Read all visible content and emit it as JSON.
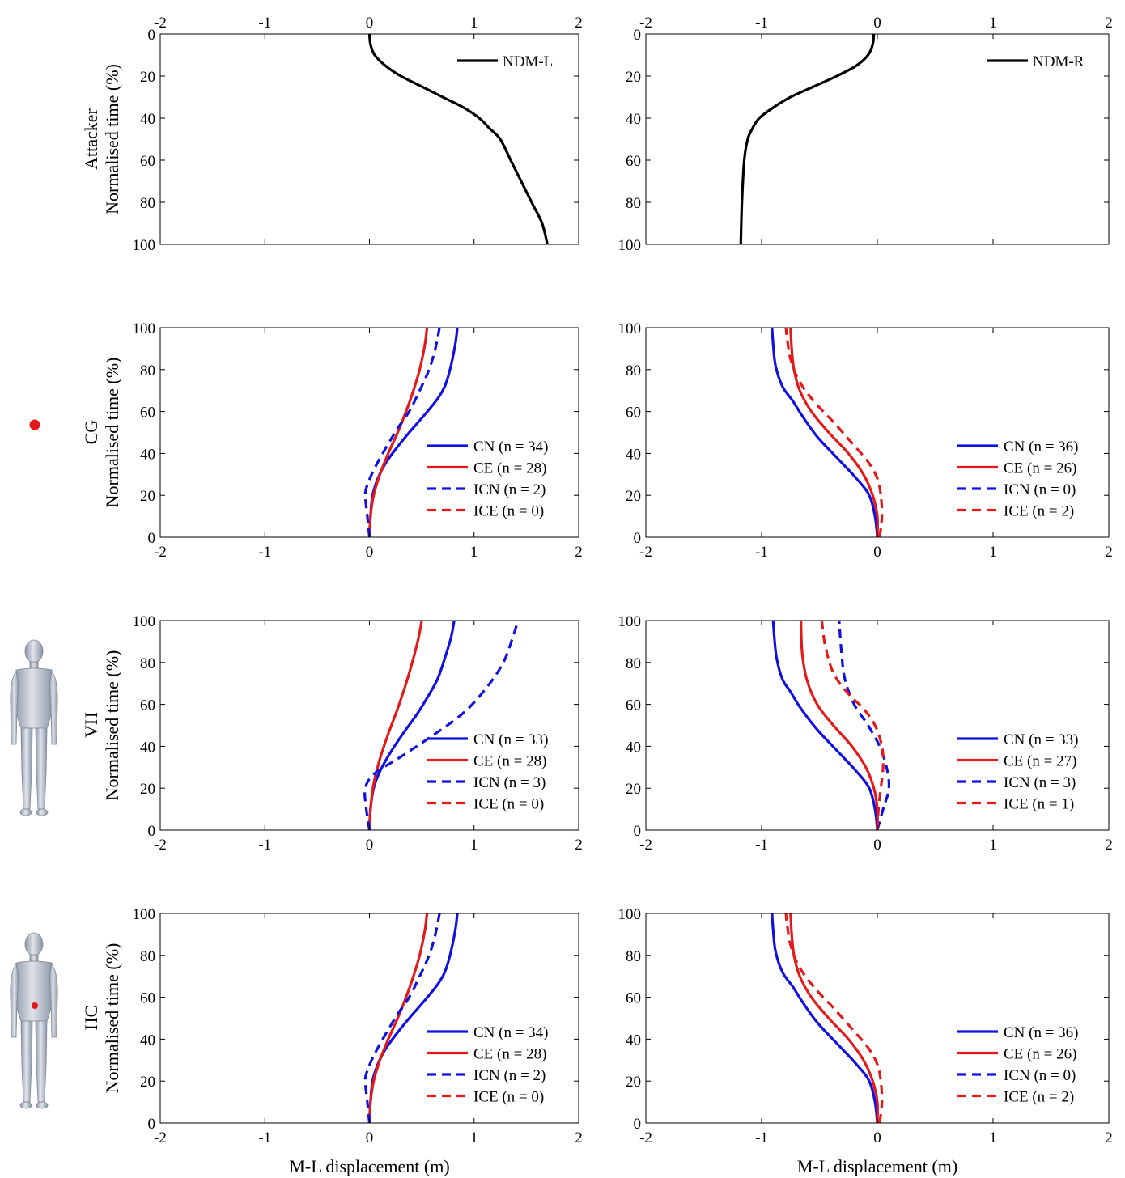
{
  "figure": {
    "row_labels": [
      "Attacker",
      "CG",
      "VH",
      "HC"
    ],
    "ylabel": "Normalised time (%)",
    "xlabel": "M-L displacement (m)"
  },
  "colors": {
    "CN": "#1010e0",
    "CE": "#e41a1a",
    "ICN": "#1010e0",
    "ICE": "#e41a1a",
    "NDM": "#000000",
    "marker": "#e41a1a"
  },
  "icons": [
    "red-dot-marker-icon",
    "human-figure-icon",
    "human-figure-with-marker-icon"
  ],
  "chart_data": [
    {
      "id": "attacker-left",
      "type": "line",
      "row_label": "Attacker",
      "xlim": [
        -2,
        2
      ],
      "ylim": [
        0,
        100
      ],
      "y_reversed": true,
      "x_axis_position": "top",
      "xticks": [
        -2,
        -1,
        0,
        1,
        2
      ],
      "yticks": [
        0,
        20,
        40,
        60,
        80,
        100
      ],
      "ylabel": "Normalised time (%)",
      "xlabel": "",
      "legend": "top-right",
      "grid": false,
      "series": [
        {
          "name": "NDM-L",
          "key": "NDM",
          "style": "solid",
          "x": [
            0,
            0.01,
            0.05,
            0.15,
            0.3,
            0.5,
            0.7,
            0.9,
            1.05,
            1.15,
            1.25,
            1.35,
            1.45,
            1.55,
            1.65,
            1.7
          ],
          "y": [
            0,
            5,
            10,
            15,
            20,
            25,
            30,
            35,
            40,
            45,
            50,
            60,
            70,
            80,
            90,
            100
          ]
        }
      ]
    },
    {
      "id": "attacker-right",
      "type": "line",
      "row_label": "",
      "xlim": [
        -2,
        2
      ],
      "ylim": [
        0,
        100
      ],
      "y_reversed": true,
      "x_axis_position": "top",
      "xticks": [
        -2,
        -1,
        0,
        1,
        2
      ],
      "yticks": [
        0,
        20,
        40,
        60,
        80,
        100
      ],
      "ylabel": "",
      "xlabel": "",
      "legend": "top-right",
      "grid": false,
      "series": [
        {
          "name": "NDM-R",
          "key": "NDM",
          "style": "solid",
          "x": [
            -0.03,
            -0.04,
            -0.08,
            -0.18,
            -0.35,
            -0.55,
            -0.75,
            -0.9,
            -1.02,
            -1.08,
            -1.12,
            -1.15,
            -1.17,
            -1.18
          ],
          "y": [
            0,
            5,
            10,
            15,
            20,
            25,
            30,
            35,
            40,
            45,
            50,
            60,
            80,
            100
          ]
        }
      ]
    },
    {
      "id": "cg-left",
      "type": "line",
      "row_label": "CG",
      "xlim": [
        -2,
        2
      ],
      "ylim": [
        0,
        100
      ],
      "y_reversed": false,
      "x_axis_position": "bottom",
      "xticks": [
        -2,
        -1,
        0,
        1,
        2
      ],
      "yticks": [
        0,
        20,
        40,
        60,
        80,
        100
      ],
      "ylabel": "Normalised time (%)",
      "xlabel": "",
      "legend": "lower-right",
      "grid": false,
      "series": [
        {
          "name": "CN (n = 34)",
          "key": "CN",
          "style": "solid",
          "x": [
            0,
            0.01,
            0.03,
            0.08,
            0.15,
            0.25,
            0.38,
            0.52,
            0.65,
            0.72,
            0.77,
            0.82,
            0.84
          ],
          "y": [
            0,
            10,
            20,
            28,
            35,
            42,
            50,
            58,
            66,
            72,
            80,
            92,
            100
          ]
        },
        {
          "name": "CE (n = 28)",
          "key": "CE",
          "style": "solid",
          "x": [
            0,
            0.01,
            0.04,
            0.1,
            0.18,
            0.27,
            0.35,
            0.42,
            0.48,
            0.53,
            0.55
          ],
          "y": [
            0,
            10,
            20,
            30,
            40,
            50,
            60,
            70,
            80,
            92,
            100
          ]
        },
        {
          "name": "ICN (n = 2)",
          "key": "ICN",
          "style": "dashed",
          "x": [
            0,
            -0.02,
            -0.04,
            -0.02,
            0.05,
            0.15,
            0.27,
            0.38,
            0.48,
            0.57,
            0.63,
            0.67
          ],
          "y": [
            0,
            10,
            20,
            25,
            33,
            42,
            52,
            60,
            70,
            80,
            90,
            100
          ]
        },
        {
          "name": "ICE (n = 0)",
          "key": "ICE",
          "style": "dashed",
          "x": [],
          "y": []
        }
      ]
    },
    {
      "id": "cg-right",
      "type": "line",
      "row_label": "",
      "xlim": [
        -2,
        2
      ],
      "ylim": [
        0,
        100
      ],
      "y_reversed": false,
      "x_axis_position": "bottom",
      "xticks": [
        -2,
        -1,
        0,
        1,
        2
      ],
      "yticks": [
        0,
        20,
        40,
        60,
        80,
        100
      ],
      "ylabel": "",
      "xlabel": "",
      "legend": "lower-right",
      "grid": false,
      "series": [
        {
          "name": "CN (n = 36)",
          "key": "CN",
          "style": "solid",
          "x": [
            0,
            -0.02,
            -0.07,
            -0.18,
            -0.35,
            -0.52,
            -0.65,
            -0.73,
            -0.82,
            -0.88,
            -0.9,
            -0.91
          ],
          "y": [
            0,
            10,
            20,
            28,
            38,
            48,
            58,
            65,
            72,
            82,
            92,
            100
          ]
        },
        {
          "name": "CE (n = 26)",
          "key": "CE",
          "style": "solid",
          "x": [
            0,
            0,
            -0.04,
            -0.12,
            -0.25,
            -0.42,
            -0.57,
            -0.67,
            -0.72,
            -0.74,
            -0.75
          ],
          "y": [
            0,
            10,
            20,
            30,
            40,
            50,
            60,
            70,
            80,
            90,
            100
          ]
        },
        {
          "name": "ICN (n = 0)",
          "key": "ICN",
          "style": "dashed",
          "x": [],
          "y": []
        },
        {
          "name": "ICE (n = 2)",
          "key": "ICE",
          "style": "dashed",
          "x": [
            0.02,
            0.04,
            0.03,
            0.0,
            -0.08,
            -0.22,
            -0.38,
            -0.55,
            -0.68,
            -0.75,
            -0.78,
            -0.79
          ],
          "y": [
            0,
            10,
            20,
            28,
            36,
            45,
            55,
            65,
            75,
            85,
            95,
            100
          ]
        }
      ]
    },
    {
      "id": "vh-left",
      "type": "line",
      "row_label": "VH",
      "xlim": [
        -2,
        2
      ],
      "ylim": [
        0,
        100
      ],
      "y_reversed": false,
      "x_axis_position": "bottom",
      "xticks": [
        -2,
        -1,
        0,
        1,
        2
      ],
      "yticks": [
        0,
        20,
        40,
        60,
        80,
        100
      ],
      "ylabel": "Normalised time (%)",
      "xlabel": "",
      "legend": "lower-right",
      "grid": false,
      "series": [
        {
          "name": "CN (n = 33)",
          "key": "CN",
          "style": "solid",
          "x": [
            0,
            0.01,
            0.04,
            0.1,
            0.2,
            0.32,
            0.45,
            0.55,
            0.65,
            0.72,
            0.78,
            0.81
          ],
          "y": [
            0,
            10,
            20,
            28,
            37,
            46,
            55,
            63,
            72,
            82,
            92,
            100
          ]
        },
        {
          "name": "CE (n = 28)",
          "key": "CE",
          "style": "solid",
          "x": [
            0,
            0.01,
            0.04,
            0.1,
            0.18,
            0.27,
            0.35,
            0.42,
            0.47,
            0.5
          ],
          "y": [
            0,
            10,
            22,
            34,
            46,
            58,
            70,
            82,
            92,
            100
          ]
        },
        {
          "name": "ICN (n = 3)",
          "key": "ICN",
          "style": "dashed",
          "x": [
            0,
            -0.03,
            -0.04,
            0.05,
            0.3,
            0.6,
            0.9,
            1.12,
            1.28,
            1.37,
            1.42
          ],
          "y": [
            0,
            10,
            20,
            27,
            35,
            45,
            56,
            68,
            80,
            92,
            100
          ]
        },
        {
          "name": "ICE (n = 0)",
          "key": "ICE",
          "style": "dashed",
          "x": [],
          "y": []
        }
      ]
    },
    {
      "id": "vh-right",
      "type": "line",
      "row_label": "",
      "xlim": [
        -2,
        2
      ],
      "ylim": [
        0,
        100
      ],
      "y_reversed": false,
      "x_axis_position": "bottom",
      "xticks": [
        -2,
        -1,
        0,
        1,
        2
      ],
      "yticks": [
        0,
        20,
        40,
        60,
        80,
        100
      ],
      "ylabel": "",
      "xlabel": "",
      "legend": "lower-right",
      "grid": false,
      "series": [
        {
          "name": "CN (n = 33)",
          "key": "CN",
          "style": "solid",
          "x": [
            0,
            -0.02,
            -0.07,
            -0.18,
            -0.35,
            -0.52,
            -0.66,
            -0.75,
            -0.82,
            -0.87,
            -0.89,
            -0.9
          ],
          "y": [
            0,
            10,
            20,
            28,
            38,
            48,
            58,
            66,
            72,
            82,
            92,
            100
          ]
        },
        {
          "name": "CE (n = 27)",
          "key": "CE",
          "style": "solid",
          "x": [
            0,
            0,
            -0.03,
            -0.1,
            -0.22,
            -0.38,
            -0.52,
            -0.61,
            -0.65,
            -0.66
          ],
          "y": [
            0,
            10,
            20,
            30,
            40,
            50,
            60,
            72,
            85,
            100
          ]
        },
        {
          "name": "ICN (n = 3)",
          "key": "ICN",
          "style": "dashed",
          "x": [
            0,
            0.05,
            0.1,
            0.08,
            0.02,
            -0.08,
            -0.2,
            -0.28,
            -0.31,
            -0.33
          ],
          "y": [
            0,
            10,
            20,
            30,
            40,
            50,
            60,
            72,
            85,
            100
          ]
        },
        {
          "name": "ICE (n = 1)",
          "key": "ICE",
          "style": "dashed",
          "x": [
            0,
            0.01,
            0.03,
            0.05,
            0.04,
            -0.02,
            -0.12,
            -0.25,
            -0.38,
            -0.45,
            -0.48
          ],
          "y": [
            0,
            10,
            20,
            30,
            40,
            50,
            58,
            65,
            75,
            88,
            100
          ]
        }
      ]
    },
    {
      "id": "hc-left",
      "type": "line",
      "row_label": "HC",
      "xlim": [
        -2,
        2
      ],
      "ylim": [
        0,
        100
      ],
      "y_reversed": false,
      "x_axis_position": "bottom",
      "xticks": [
        -2,
        -1,
        0,
        1,
        2
      ],
      "yticks": [
        0,
        20,
        40,
        60,
        80,
        100
      ],
      "ylabel": "Normalised time (%)",
      "xlabel": "M-L displacement (m)",
      "legend": "lower-right",
      "grid": false,
      "series": [
        {
          "name": "CN (n = 34)",
          "key": "CN",
          "style": "solid",
          "x": [
            0,
            0.01,
            0.03,
            0.08,
            0.15,
            0.25,
            0.38,
            0.52,
            0.65,
            0.72,
            0.77,
            0.82,
            0.84
          ],
          "y": [
            0,
            10,
            20,
            28,
            35,
            42,
            50,
            58,
            66,
            72,
            80,
            92,
            100
          ]
        },
        {
          "name": "CE (n = 28)",
          "key": "CE",
          "style": "solid",
          "x": [
            0,
            0.01,
            0.04,
            0.1,
            0.18,
            0.27,
            0.35,
            0.42,
            0.48,
            0.53,
            0.55
          ],
          "y": [
            0,
            10,
            20,
            30,
            40,
            50,
            60,
            70,
            80,
            92,
            100
          ]
        },
        {
          "name": "ICN (n = 2)",
          "key": "ICN",
          "style": "dashed",
          "x": [
            0,
            -0.02,
            -0.04,
            -0.02,
            0.05,
            0.15,
            0.27,
            0.38,
            0.48,
            0.57,
            0.63,
            0.67
          ],
          "y": [
            0,
            10,
            20,
            25,
            33,
            42,
            52,
            60,
            70,
            80,
            90,
            100
          ]
        },
        {
          "name": "ICE (n = 0)",
          "key": "ICE",
          "style": "dashed",
          "x": [],
          "y": []
        }
      ]
    },
    {
      "id": "hc-right",
      "type": "line",
      "row_label": "",
      "xlim": [
        -2,
        2
      ],
      "ylim": [
        0,
        100
      ],
      "y_reversed": false,
      "x_axis_position": "bottom",
      "xticks": [
        -2,
        -1,
        0,
        1,
        2
      ],
      "yticks": [
        0,
        20,
        40,
        60,
        80,
        100
      ],
      "ylabel": "",
      "xlabel": "M-L displacement (m)",
      "legend": "lower-right",
      "grid": false,
      "series": [
        {
          "name": "CN (n = 36)",
          "key": "CN",
          "style": "solid",
          "x": [
            0,
            -0.02,
            -0.07,
            -0.18,
            -0.35,
            -0.52,
            -0.65,
            -0.73,
            -0.82,
            -0.88,
            -0.9,
            -0.91
          ],
          "y": [
            0,
            10,
            20,
            28,
            38,
            48,
            58,
            65,
            72,
            82,
            92,
            100
          ]
        },
        {
          "name": "CE (n = 26)",
          "key": "CE",
          "style": "solid",
          "x": [
            0,
            0,
            -0.04,
            -0.12,
            -0.25,
            -0.42,
            -0.57,
            -0.67,
            -0.72,
            -0.74,
            -0.75
          ],
          "y": [
            0,
            10,
            20,
            30,
            40,
            50,
            60,
            70,
            80,
            90,
            100
          ]
        },
        {
          "name": "ICN (n = 0)",
          "key": "ICN",
          "style": "dashed",
          "x": [],
          "y": []
        },
        {
          "name": "ICE (n = 2)",
          "key": "ICE",
          "style": "dashed",
          "x": [
            0.02,
            0.04,
            0.03,
            0.0,
            -0.08,
            -0.22,
            -0.38,
            -0.55,
            -0.68,
            -0.75,
            -0.78,
            -0.79
          ],
          "y": [
            0,
            10,
            20,
            28,
            36,
            45,
            55,
            65,
            75,
            85,
            95,
            100
          ]
        }
      ]
    }
  ]
}
